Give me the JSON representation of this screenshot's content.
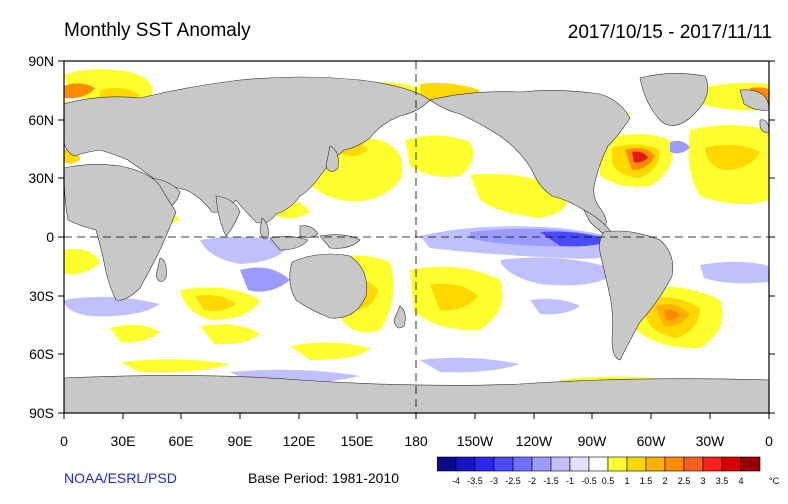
{
  "header": {
    "title": "Monthly SST Anomaly",
    "date_range": "2017/10/15 - 2017/11/11"
  },
  "axes": {
    "lat_labels": [
      "90N",
      "60N",
      "30N",
      "0",
      "30S",
      "60S",
      "90S"
    ],
    "lon_labels": [
      "0",
      "30E",
      "60E",
      "90E",
      "120E",
      "150E",
      "180",
      "150W",
      "120W",
      "90W",
      "60W",
      "30W",
      "0"
    ]
  },
  "footer": {
    "credit": "NOAA/ESRL/PSD",
    "base_period": "Base Period: 1981-2010"
  },
  "colorbar": {
    "unit": "°C",
    "ticks": [
      "-4",
      "-3.5",
      "-3",
      "-2.5",
      "-2",
      "-1.5",
      "-1",
      "-0.5",
      "0.5",
      "1",
      "1.5",
      "2",
      "2.5",
      "3",
      "3.5",
      "4"
    ],
    "colors": [
      "#0a0a8a",
      "#1414c8",
      "#2a2af0",
      "#4a4aff",
      "#7070ff",
      "#9a9aff",
      "#c0c0ff",
      "#e0e0ff",
      "#ffffff",
      "#ffff30",
      "#ffd800",
      "#ffb000",
      "#ff8c00",
      "#ff6020",
      "#ff2020",
      "#d80000",
      "#980000"
    ]
  },
  "palette": {
    "land": "#c8c8c8",
    "warm_light": "#ffff30",
    "warm_mid": "#ffd800",
    "warm_high": "#ffb000",
    "warm_hot": "#ff8c00",
    "red": "#e01818",
    "cool_light": "#c0c0ff",
    "cool_mid": "#9a9aff",
    "cool_strong": "#4a4aff"
  }
}
